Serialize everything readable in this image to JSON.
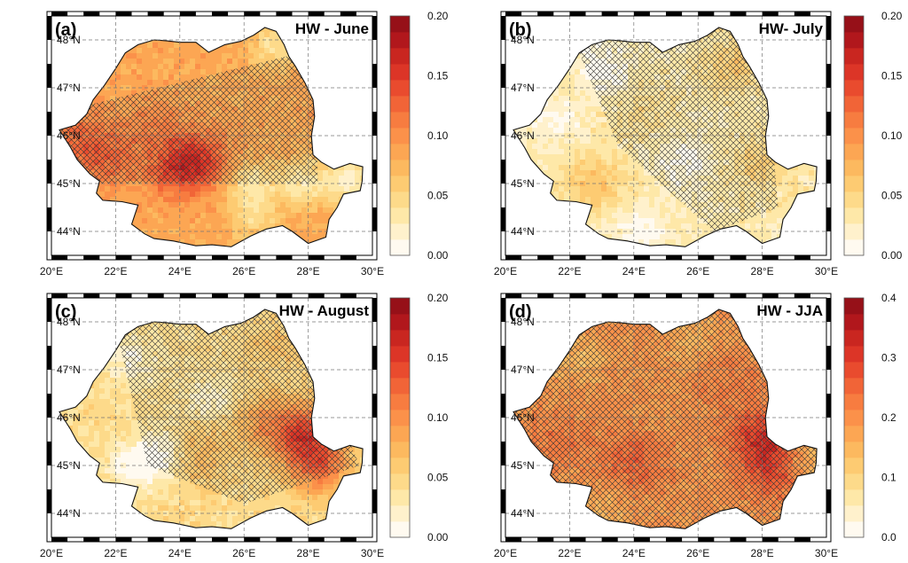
{
  "figure": {
    "lon_ticks": [
      "20°E",
      "22°E",
      "24°E",
      "26°E",
      "28°E",
      "30°E"
    ],
    "lat_ticks": [
      "44°N",
      "45°N",
      "46°N",
      "47°N",
      "48°N"
    ],
    "colormap": [
      "#fffaf0",
      "#fff1cc",
      "#fee8a8",
      "#fdda8a",
      "#fdcb72",
      "#fcb95f",
      "#fca653",
      "#fb914a",
      "#f77c40",
      "#f16437",
      "#e94b2e",
      "#dc3527",
      "#c92620",
      "#b1171c",
      "#961018"
    ],
    "hatch_color": "#333333",
    "panels": [
      {
        "letter": "(a)",
        "title": "HW - June",
        "colorbar": {
          "min": 0.0,
          "max": 0.2,
          "labels": [
            "0.20",
            "0.15",
            "0.10",
            "0.05",
            "0.00"
          ]
        },
        "field": {
          "mean": 0.085,
          "hotspots": [
            {
              "lon": 24.0,
              "lat": 45.3,
              "value": 0.135
            },
            {
              "lon": 21.6,
              "lat": 45.5,
              "value": 0.125
            },
            {
              "lon": 20.6,
              "lat": 46.1,
              "value": 0.115
            },
            {
              "lon": 24.6,
              "lat": 45.5,
              "value": 0.13
            },
            {
              "lon": 23.0,
              "lat": 46.2,
              "value": 0.105
            }
          ],
          "coldspots": [
            {
              "lon": 27.8,
              "lat": 45.0,
              "value": 0.035
            },
            {
              "lon": 29.3,
              "lat": 45.1,
              "value": 0.02
            },
            {
              "lon": 26.3,
              "lat": 44.3,
              "value": 0.05
            },
            {
              "lon": 27.0,
              "lat": 47.9,
              "value": 0.04
            },
            {
              "lon": 26.2,
              "lat": 45.0,
              "value": 0.04
            }
          ]
        }
      },
      {
        "letter": "(b)",
        "title": "HW- July",
        "colorbar": {
          "min": 0.0,
          "max": 0.2,
          "labels": [
            "0.20",
            "0.15",
            "0.10",
            "0.05",
            "0.00"
          ]
        },
        "field": {
          "mean": 0.03,
          "hotspots": [
            {
              "lon": 27.1,
              "lat": 47.5,
              "value": 0.06
            },
            {
              "lon": 22.8,
              "lat": 45.0,
              "value": 0.065
            },
            {
              "lon": 28.0,
              "lat": 45.4,
              "value": 0.055
            },
            {
              "lon": 24.3,
              "lat": 46.5,
              "value": 0.045
            }
          ],
          "coldspots": [
            {
              "lon": 23.0,
              "lat": 47.4,
              "value": 0.003
            },
            {
              "lon": 24.2,
              "lat": 44.1,
              "value": 0.005
            },
            {
              "lon": 25.5,
              "lat": 45.5,
              "value": 0.008
            },
            {
              "lon": 21.5,
              "lat": 46.3,
              "value": 0.012
            }
          ]
        }
      },
      {
        "letter": "(c)",
        "title": "HW - August",
        "colorbar": {
          "min": 0.0,
          "max": 0.2,
          "labels": [
            "0.20",
            "0.15",
            "0.10",
            "0.05",
            "0.00"
          ]
        },
        "field": {
          "mean": 0.045,
          "hotspots": [
            {
              "lon": 27.9,
              "lat": 45.7,
              "value": 0.13
            },
            {
              "lon": 28.3,
              "lat": 45.0,
              "value": 0.12
            },
            {
              "lon": 26.6,
              "lat": 45.9,
              "value": 0.085
            },
            {
              "lon": 24.5,
              "lat": 45.2,
              "value": 0.08
            },
            {
              "lon": 27.0,
              "lat": 47.5,
              "value": 0.065
            }
          ],
          "coldspots": [
            {
              "lon": 22.6,
              "lat": 45.0,
              "value": 0.002
            },
            {
              "lon": 23.5,
              "lat": 45.2,
              "value": 0.005
            },
            {
              "lon": 22.5,
              "lat": 47.2,
              "value": 0.015
            },
            {
              "lon": 25.0,
              "lat": 46.4,
              "value": 0.02
            }
          ]
        }
      },
      {
        "letter": "(d)",
        "title": "HW - JJA",
        "colorbar": {
          "min": 0.0,
          "max": 0.4,
          "labels": [
            "0.4",
            "0.3",
            "0.2",
            "0.1",
            "0.0"
          ]
        },
        "field": {
          "mean": 0.19,
          "hotspots": [
            {
              "lon": 28.0,
              "lat": 45.6,
              "value": 0.3
            },
            {
              "lon": 28.4,
              "lat": 44.9,
              "value": 0.28
            },
            {
              "lon": 24.0,
              "lat": 45.1,
              "value": 0.25
            },
            {
              "lon": 21.6,
              "lat": 45.5,
              "value": 0.23
            },
            {
              "lon": 26.9,
              "lat": 46.8,
              "value": 0.22
            }
          ],
          "coldspots": [
            {
              "lon": 22.4,
              "lat": 47.2,
              "value": 0.14
            },
            {
              "lon": 25.8,
              "lat": 47.6,
              "value": 0.15
            },
            {
              "lon": 29.4,
              "lat": 45.1,
              "value": 0.12
            },
            {
              "lon": 23.0,
              "lat": 44.0,
              "value": 0.15
            }
          ]
        }
      }
    ]
  }
}
